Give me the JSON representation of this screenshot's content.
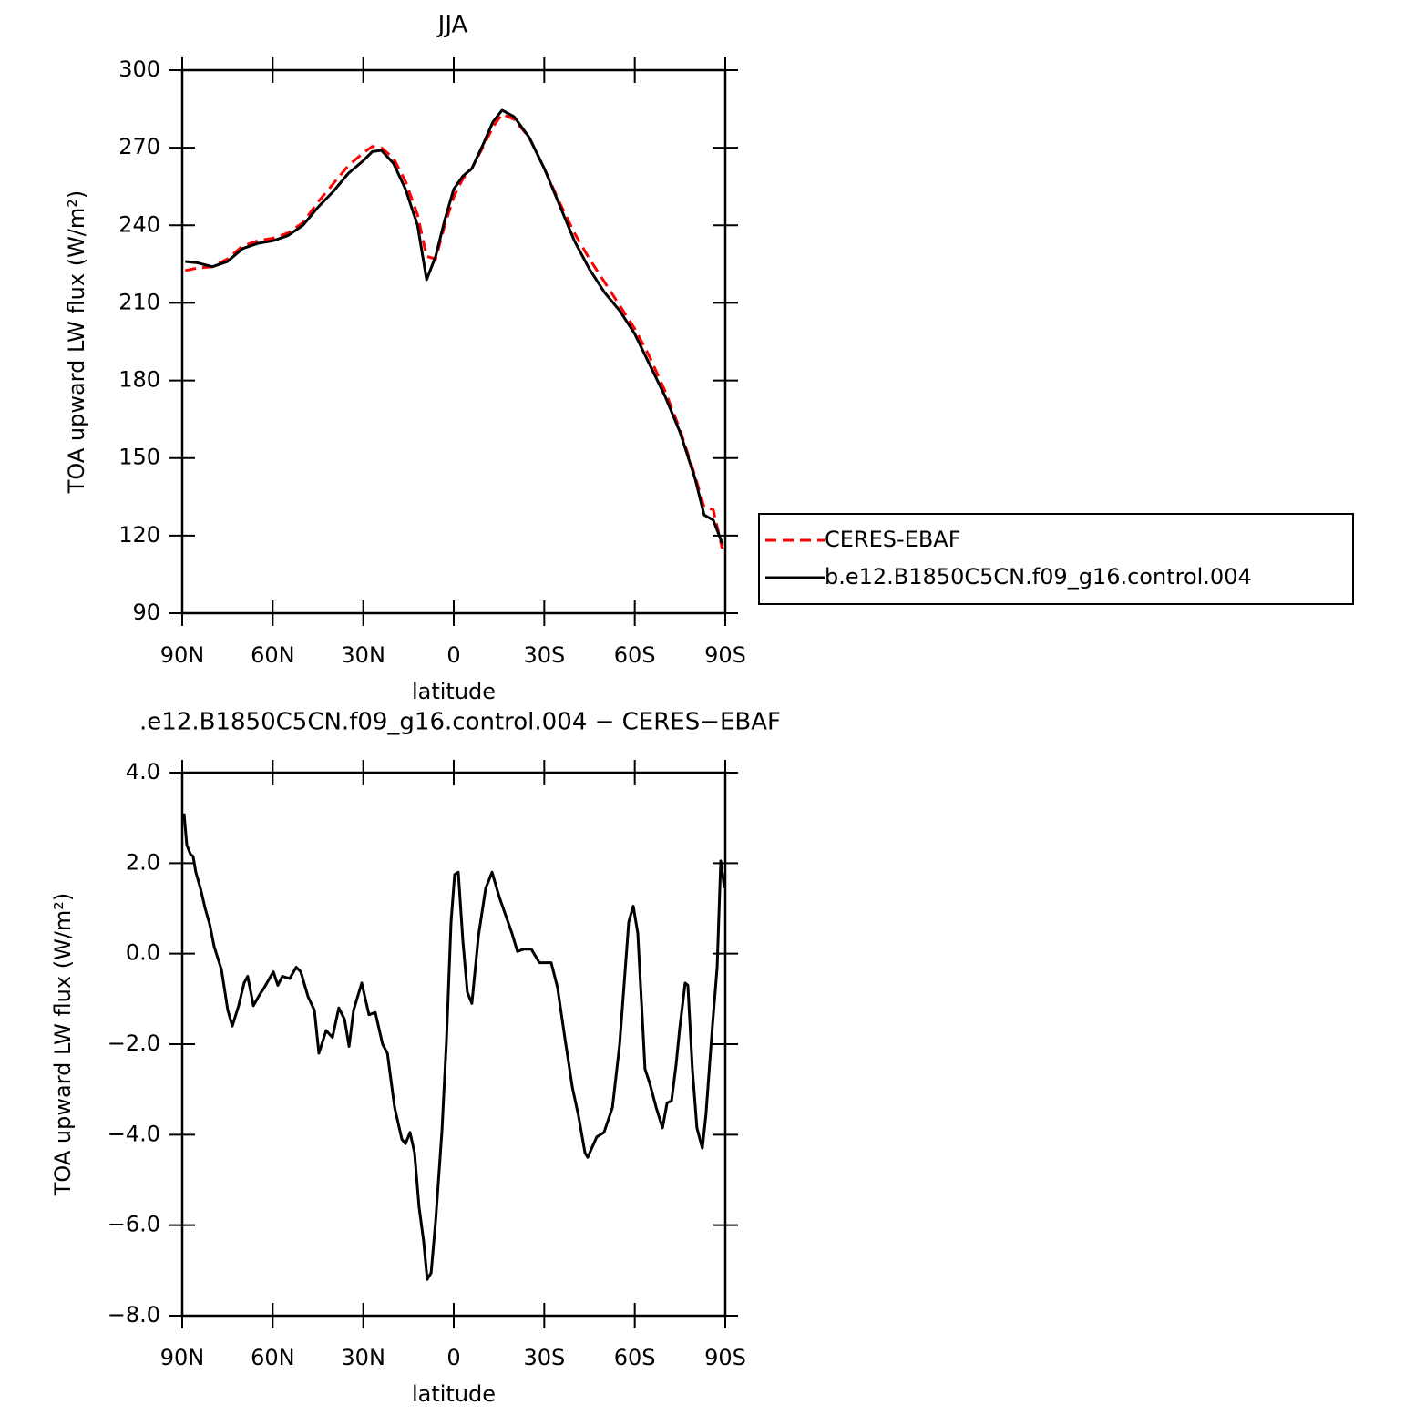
{
  "chart_data": [
    {
      "type": "line",
      "title": "JJA",
      "xlabel": "latitude",
      "ylabel": "TOA upward LW flux (W/m²)",
      "x": [
        89,
        85,
        80,
        75,
        70,
        65,
        60,
        55,
        50,
        45,
        40,
        35,
        30,
        27,
        24,
        20,
        16,
        12,
        9,
        6,
        3,
        0,
        -3,
        -6,
        -10,
        -13,
        -16,
        -20,
        -25,
        -30,
        -35,
        -40,
        -45,
        -50,
        -55,
        -60,
        -65,
        -70,
        -75,
        -80,
        -83,
        -86,
        -89
      ],
      "series": [
        {
          "name": "CERES-EBAF",
          "color": "#ff0000",
          "line_style": "dashed",
          "values": [
            222.5,
            223.5,
            224,
            227,
            232,
            234,
            235,
            237,
            241,
            249,
            256,
            263,
            268,
            270.5,
            270,
            266,
            257,
            244,
            228,
            227,
            240,
            251,
            258,
            262,
            271,
            278,
            283,
            281,
            274,
            262,
            249,
            237,
            227,
            218,
            209,
            200,
            189,
            176,
            161,
            143,
            131,
            130,
            115
          ]
        },
        {
          "name": "b.e12.B1850C5CN.f09_g16.control.004",
          "color": "#000000",
          "line_style": "solid",
          "values": [
            226,
            225.5,
            224,
            226,
            231,
            233,
            234,
            236,
            240,
            247,
            253,
            260,
            265,
            268.5,
            269,
            264,
            254,
            240,
            219,
            228,
            242,
            254,
            259,
            262,
            272,
            280,
            284.5,
            282,
            274,
            262,
            248,
            234,
            223,
            214,
            207,
            198,
            186,
            174,
            160,
            142,
            128,
            126,
            117
          ]
        }
      ],
      "xlim": [
        90,
        -90
      ],
      "xticks": [
        {
          "value": 90,
          "label": "90N"
        },
        {
          "value": 60,
          "label": "60N"
        },
        {
          "value": 30,
          "label": "30N"
        },
        0,
        {
          "value": -30,
          "label": "30S"
        },
        {
          "value": -60,
          "label": "60S"
        },
        {
          "value": -90,
          "label": "90S"
        }
      ],
      "ylim": [
        90,
        300
      ],
      "yticks": [
        90,
        120,
        150,
        180,
        210,
        240,
        270,
        300
      ],
      "legend": "right"
    },
    {
      "type": "line",
      "title": ".e12.B1850C5CN.f09_g16.control.004 − CERES−EBAF",
      "xlabel": "latitude",
      "ylabel": "TOA upward LW flux (W/m²)",
      "x": [
        89.4,
        88.5,
        87.3,
        86.4,
        85.5,
        84.0,
        82.4,
        80.9,
        79.4,
        77.0,
        74.9,
        73.4,
        71.3,
        69.5,
        68.3,
        66.4,
        64.3,
        62.8,
        59.8,
        58.3,
        56.8,
        54.4,
        52.2,
        50.7,
        48.3,
        46.2,
        44.7,
        42.3,
        40.2,
        38.1,
        36.2,
        34.7,
        33.2,
        30.5,
        28.1,
        26.0,
        23.6,
        22.0,
        19.6,
        17.2,
        16.0,
        14.5,
        13.0,
        11.5,
        10.0,
        8.8,
        7.5,
        6.0,
        3.9,
        2.4,
        0.9,
        -0.3,
        -1.5,
        -3.0,
        -4.5,
        -6.0,
        -8.2,
        -10.6,
        -12.7,
        -15.1,
        -17.2,
        -19.3,
        -21.1,
        -23.3,
        -25.7,
        -28.4,
        -30.8,
        -32.3,
        -34.4,
        -36.8,
        -39.3,
        -41.4,
        -43.5,
        -44.4,
        -47.4,
        -49.8,
        -52.6,
        -55.0,
        -58.0,
        -59.5,
        -61.0,
        -63.4,
        -64.9,
        -67.1,
        -69.2,
        -70.7,
        -72.2,
        -73.7,
        -74.9,
        -76.7,
        -77.6,
        -79.1,
        -80.6,
        -82.4,
        -83.6,
        -85.8,
        -87.3,
        -88.5,
        -89.7
      ],
      "series": [
        {
          "color": "#000000",
          "line_style": "solid",
          "values": [
            3.1,
            2.4,
            2.2,
            2.15,
            1.8,
            1.45,
            1.0,
            0.65,
            0.15,
            -0.35,
            -1.25,
            -1.6,
            -1.15,
            -0.65,
            -0.5,
            -1.15,
            -0.9,
            -0.75,
            -0.4,
            -0.7,
            -0.5,
            -0.55,
            -0.3,
            -0.4,
            -0.95,
            -1.25,
            -2.2,
            -1.7,
            -1.85,
            -1.2,
            -1.45,
            -2.05,
            -1.25,
            -0.65,
            -1.35,
            -1.3,
            -2.0,
            -2.2,
            -3.4,
            -4.1,
            -4.2,
            -3.95,
            -4.4,
            -5.6,
            -6.35,
            -7.2,
            -7.05,
            -5.9,
            -3.9,
            -1.9,
            0.7,
            1.75,
            1.8,
            0.3,
            -0.85,
            -1.1,
            0.4,
            1.45,
            1.8,
            1.25,
            0.85,
            0.45,
            0.05,
            0.1,
            0.1,
            -0.2,
            -0.2,
            -0.2,
            -0.75,
            -1.85,
            -2.95,
            -3.6,
            -4.4,
            -4.5,
            -4.05,
            -3.95,
            -3.4,
            -2.0,
            0.7,
            1.05,
            0.45,
            -2.55,
            -2.85,
            -3.4,
            -3.85,
            -3.3,
            -3.25,
            -2.45,
            -1.65,
            -0.65,
            -0.7,
            -2.55,
            -3.85,
            -4.3,
            -3.55,
            -1.55,
            -0.3,
            2.05,
            1.45
          ]
        }
      ],
      "xlim": [
        90,
        -90
      ],
      "xticks": [
        {
          "value": 90,
          "label": "90N"
        },
        {
          "value": 60,
          "label": "60N"
        },
        {
          "value": 30,
          "label": "30N"
        },
        0,
        {
          "value": -30,
          "label": "30S"
        },
        {
          "value": -60,
          "label": "60S"
        },
        {
          "value": -90,
          "label": "90S"
        }
      ],
      "ylim": [
        -8,
        4
      ],
      "yticks": [
        {
          "value": -8,
          "label": "−8.0"
        },
        {
          "value": -6,
          "label": "−6.0"
        },
        {
          "value": -4,
          "label": "−4.0"
        },
        {
          "value": -2,
          "label": "−2.0"
        },
        {
          "value": 0,
          "label": "0.0"
        },
        {
          "value": 2,
          "label": "2.0"
        },
        {
          "value": 4,
          "label": "4.0"
        }
      ]
    }
  ]
}
